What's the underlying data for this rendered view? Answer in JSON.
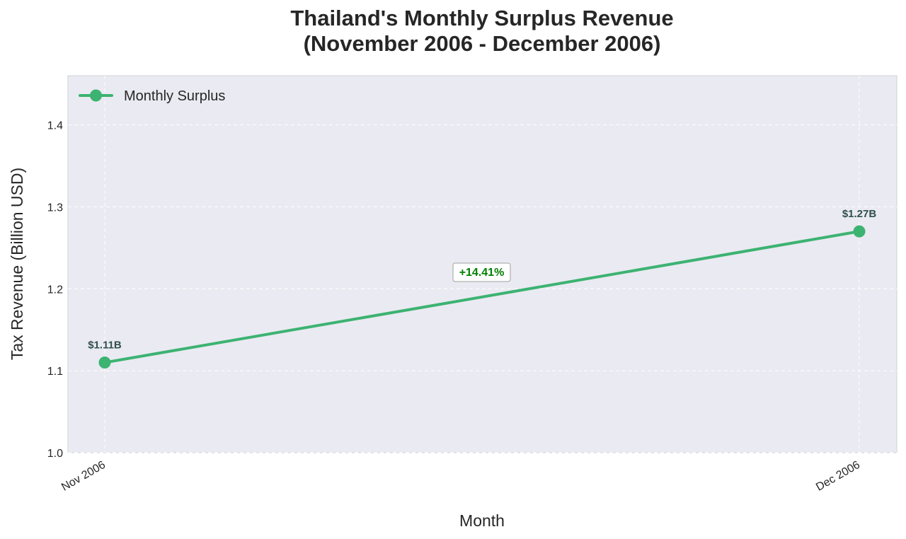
{
  "chart_data": {
    "type": "line",
    "title_line1": "Thailand's Monthly Surplus Revenue",
    "title_line2": "(November 2006 - December 2006)",
    "xlabel": "Month",
    "ylabel": "Tax Revenue (Billion USD)",
    "categories": [
      "Nov 2006",
      "Dec 2006"
    ],
    "series": [
      {
        "name": "Monthly Surplus",
        "values": [
          1.11,
          1.27
        ],
        "color": "#3cb371"
      }
    ],
    "data_labels": [
      "$1.11B",
      "$1.27B"
    ],
    "annotation": {
      "text": "+14.41%",
      "color": "#008000"
    },
    "ylim": [
      1.0,
      1.46
    ],
    "yticks": [
      1.0,
      1.1,
      1.2,
      1.3,
      1.4
    ],
    "ytick_labels": [
      "1.0",
      "1.1",
      "1.2",
      "1.3",
      "1.4"
    ],
    "grid": true,
    "legend_position": "top-left",
    "plot_background": "#eaeaf2"
  }
}
